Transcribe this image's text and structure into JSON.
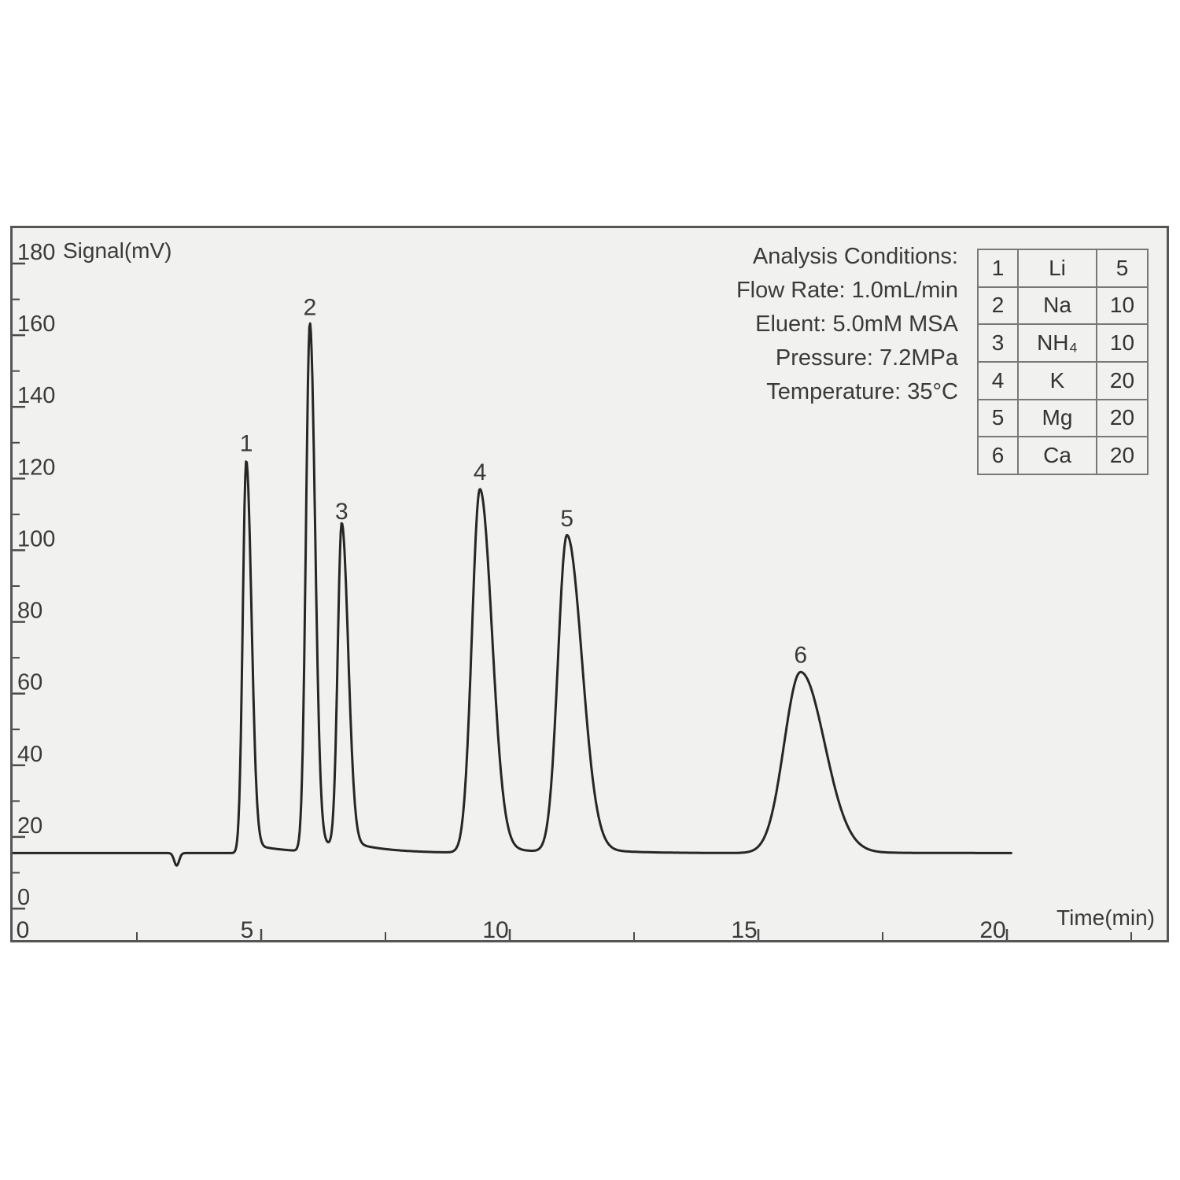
{
  "colors": {
    "panel_background": "#f1f1ef",
    "panel_border": "#555555",
    "trace": "#262626",
    "text": "#3a3a3a",
    "tick": "#4a4a4a",
    "table_border": "#787878"
  },
  "conditions": {
    "title": "Analysis Conditions:",
    "lines": [
      "Flow Rate: 1.0mL/min",
      "Eluent: 5.0mM MSA",
      "Pressure: 7.2MPa",
      "Temperature: 35°C"
    ]
  },
  "legend_table": {
    "rows": [
      {
        "num": "1",
        "ion": "Li",
        "conc": "5"
      },
      {
        "num": "2",
        "ion": "Na",
        "conc": "10"
      },
      {
        "num": "3",
        "ion": "NH₄",
        "conc": "10"
      },
      {
        "num": "4",
        "ion": "K",
        "conc": "20"
      },
      {
        "num": "5",
        "ion": "Mg",
        "conc": "20"
      },
      {
        "num": "6",
        "ion": "Ca",
        "conc": "20"
      }
    ]
  },
  "chart_data": {
    "type": "line",
    "title": "",
    "xlabel": "Time(min)",
    "ylabel": "Signal(mV)",
    "xlim": [
      0,
      23.2
    ],
    "ylim": [
      -8.8,
      189.9
    ],
    "grid": false,
    "x_major_ticks": [
      0,
      5,
      10,
      15,
      20
    ],
    "x_minor_step": 2.5,
    "y_major_ticks": [
      0,
      20,
      40,
      60,
      80,
      100,
      120,
      140,
      160,
      180
    ],
    "y_minor_step": 10,
    "baseline_mV": 15.5,
    "trace_start_min": 0,
    "trace_end_min": 20.1,
    "injection_dip": {
      "time_min": 3.3,
      "depth_mV": 3.5,
      "sigma_min": 0.05
    },
    "peaks": [
      {
        "label": "1",
        "ion": "Li",
        "retention_min": 4.7,
        "apex_mV": 125,
        "sigma_left_min": 0.07,
        "sigma_right_min": 0.105
      },
      {
        "label": "2",
        "ion": "Na",
        "retention_min": 5.98,
        "apex_mV": 163,
        "sigma_left_min": 0.08,
        "sigma_right_min": 0.105
      },
      {
        "label": "3",
        "ion": "NH₄",
        "retention_min": 6.62,
        "apex_mV": 106,
        "sigma_left_min": 0.08,
        "sigma_right_min": 0.13
      },
      {
        "label": "4",
        "ion": "K",
        "retention_min": 9.4,
        "apex_mV": 117,
        "sigma_left_min": 0.16,
        "sigma_right_min": 0.24
      },
      {
        "label": "5",
        "ion": "Mg",
        "retention_min": 11.15,
        "apex_mV": 104,
        "sigma_left_min": 0.18,
        "sigma_right_min": 0.3
      },
      {
        "label": "6",
        "ion": "Ca",
        "retention_min": 15.85,
        "apex_mV": 66,
        "sigma_left_min": 0.33,
        "sigma_right_min": 0.48
      }
    ]
  }
}
